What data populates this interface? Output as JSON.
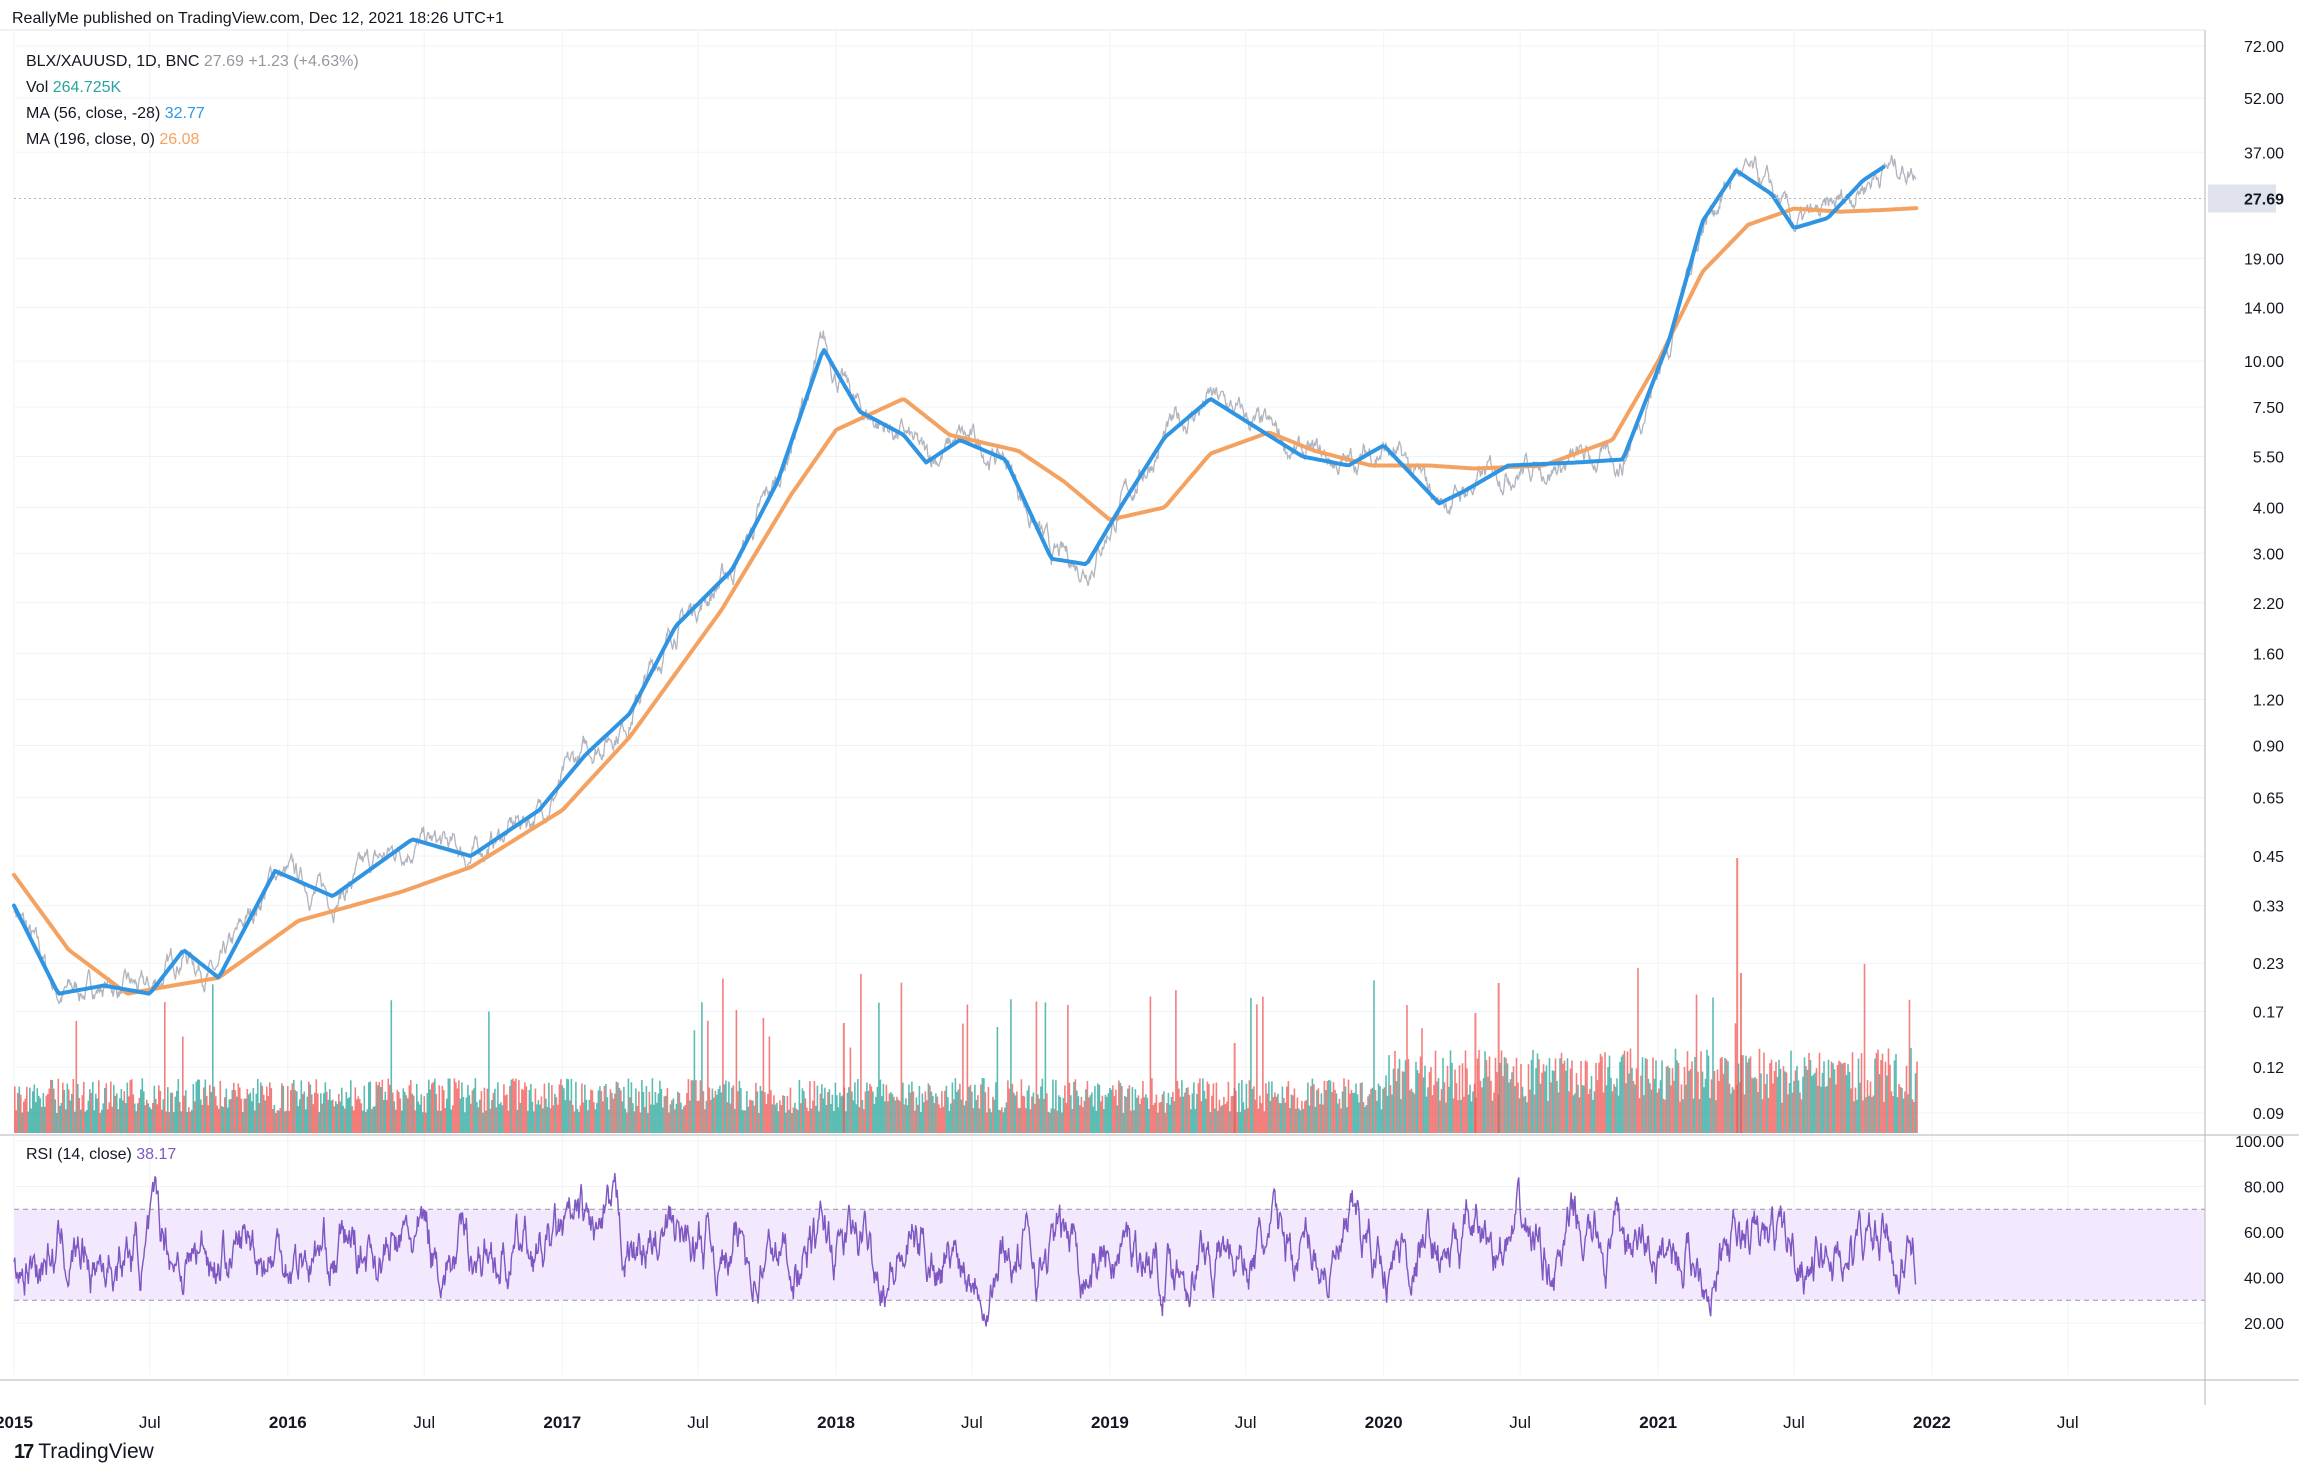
{
  "header": {
    "text": "ReallyMe published on TradingView.com, Dec 12, 2021 18:26 UTC+1"
  },
  "legend": {
    "symbol": "BLX/XAUUSD, 1D, BNC",
    "last": "27.69",
    "change": "+1.23 (+4.63%)",
    "vol_label": "Vol",
    "vol_value": "264.725K",
    "ma56_label": "MA (56, close, -28)",
    "ma56_value": "32.77",
    "ma196_label": "MA (196, close, 0)",
    "ma196_value": "26.08",
    "rsi_label": "RSI (14, close)",
    "rsi_value": "38.17"
  },
  "footer": {
    "logo": "17",
    "brand": "TradingView"
  },
  "colors": {
    "price": "#b2b5be",
    "ma56": "#2f94e2",
    "ma196": "#f4a261",
    "rsi": "#7e57c2",
    "rsi_band": "#f3e9fe",
    "vol_up": "#26a69a",
    "vol_down": "#ef5350",
    "last_label_bg": "#e0e3eb"
  },
  "chart_data": [
    {
      "type": "line",
      "title": "BLX/XAUUSD, 1D, BNC",
      "y_scale": "log",
      "y_ticks": [
        "72.00",
        "52.00",
        "37.00",
        "27.69",
        "19.00",
        "14.00",
        "10.00",
        "7.50",
        "5.50",
        "4.00",
        "3.00",
        "2.20",
        "1.60",
        "1.20",
        "0.90",
        "0.65",
        "0.45",
        "0.33",
        "0.23",
        "0.17",
        "0.12",
        "0.09"
      ],
      "x_ticks": [
        "2015",
        "Jul",
        "2016",
        "Jul",
        "2017",
        "Jul",
        "2018",
        "Jul",
        "2019",
        "Jul",
        "2020",
        "Jul",
        "2021",
        "Jul",
        "2022",
        "Jul"
      ],
      "x_range": [
        "2015-01-01",
        "2022-12-31"
      ],
      "last_value": 27.69,
      "series": [
        {
          "name": "MA (56, close, -28)",
          "x": [
            "2015-01-01",
            "2015-03-01",
            "2015-05-01",
            "2015-07-01",
            "2015-08-15",
            "2015-10-01",
            "2015-12-15",
            "2016-03-01",
            "2016-06-15",
            "2016-09-01",
            "2016-12-01",
            "2017-02-01",
            "2017-04-01",
            "2017-06-01",
            "2017-08-15",
            "2017-10-15",
            "2017-12-15",
            "2018-02-01",
            "2018-04-01",
            "2018-05-01",
            "2018-06-15",
            "2018-08-15",
            "2018-10-15",
            "2018-12-01",
            "2019-01-15",
            "2019-03-15",
            "2019-05-15",
            "2019-07-15",
            "2019-09-15",
            "2019-11-15",
            "2020-01-01",
            "2020-03-15",
            "2020-04-15",
            "2020-06-15",
            "2020-09-15",
            "2020-11-15",
            "2021-01-15",
            "2021-03-01",
            "2021-04-15",
            "2021-06-01",
            "2021-07-01",
            "2021-08-15",
            "2021-10-01",
            "2021-10-31"
          ],
          "values": [
            0.33,
            0.19,
            0.2,
            0.19,
            0.25,
            0.21,
            0.41,
            0.35,
            0.5,
            0.45,
            0.6,
            0.85,
            1.1,
            1.9,
            2.7,
            4.7,
            10.8,
            7.3,
            6.3,
            5.3,
            6.1,
            5.4,
            2.9,
            2.8,
            4.0,
            6.2,
            7.9,
            6.6,
            5.5,
            5.2,
            5.9,
            4.1,
            4.4,
            5.2,
            5.3,
            5.4,
            11.3,
            24.0,
            33.0,
            28.5,
            23.0,
            24.5,
            31.0,
            34.0
          ]
        },
        {
          "name": "MA (196, close, 0)",
          "x": [
            "2015-01-01",
            "2015-03-15",
            "2015-06-01",
            "2015-08-01",
            "2015-10-01",
            "2016-01-15",
            "2016-06-01",
            "2016-09-01",
            "2017-01-01",
            "2017-04-01",
            "2017-08-01",
            "2017-11-01",
            "2018-01-01",
            "2018-04-01",
            "2018-06-01",
            "2018-09-01",
            "2018-11-01",
            "2019-01-01",
            "2019-03-15",
            "2019-05-15",
            "2019-08-01",
            "2019-10-01",
            "2019-12-15",
            "2020-03-01",
            "2020-05-01",
            "2020-08-01",
            "2020-11-01",
            "2021-01-01",
            "2021-03-01",
            "2021-05-01",
            "2021-07-01",
            "2021-09-01",
            "2021-11-01",
            "2021-12-11"
          ],
          "values": [
            0.4,
            0.25,
            0.19,
            0.2,
            0.21,
            0.3,
            0.36,
            0.42,
            0.6,
            0.95,
            2.1,
            4.3,
            6.5,
            7.9,
            6.3,
            5.7,
            4.7,
            3.7,
            4.0,
            5.6,
            6.4,
            5.7,
            5.2,
            5.2,
            5.1,
            5.2,
            6.1,
            10.0,
            17.5,
            23.5,
            26.0,
            25.5,
            25.8,
            26.08
          ]
        }
      ]
    },
    {
      "type": "bar",
      "title": "Vol",
      "last_value_label": "264.725K",
      "note": "daily volume histogram, up days teal / down days red, notable spikes mid-2020 and Apr 2021"
    },
    {
      "type": "line",
      "title": "RSI (14, close)",
      "y_ticks": [
        "100.00",
        "80.00",
        "60.00",
        "40.00",
        "20.00"
      ],
      "ylim": [
        0,
        100
      ],
      "band": [
        30,
        70
      ],
      "last_value": 38.17
    }
  ]
}
